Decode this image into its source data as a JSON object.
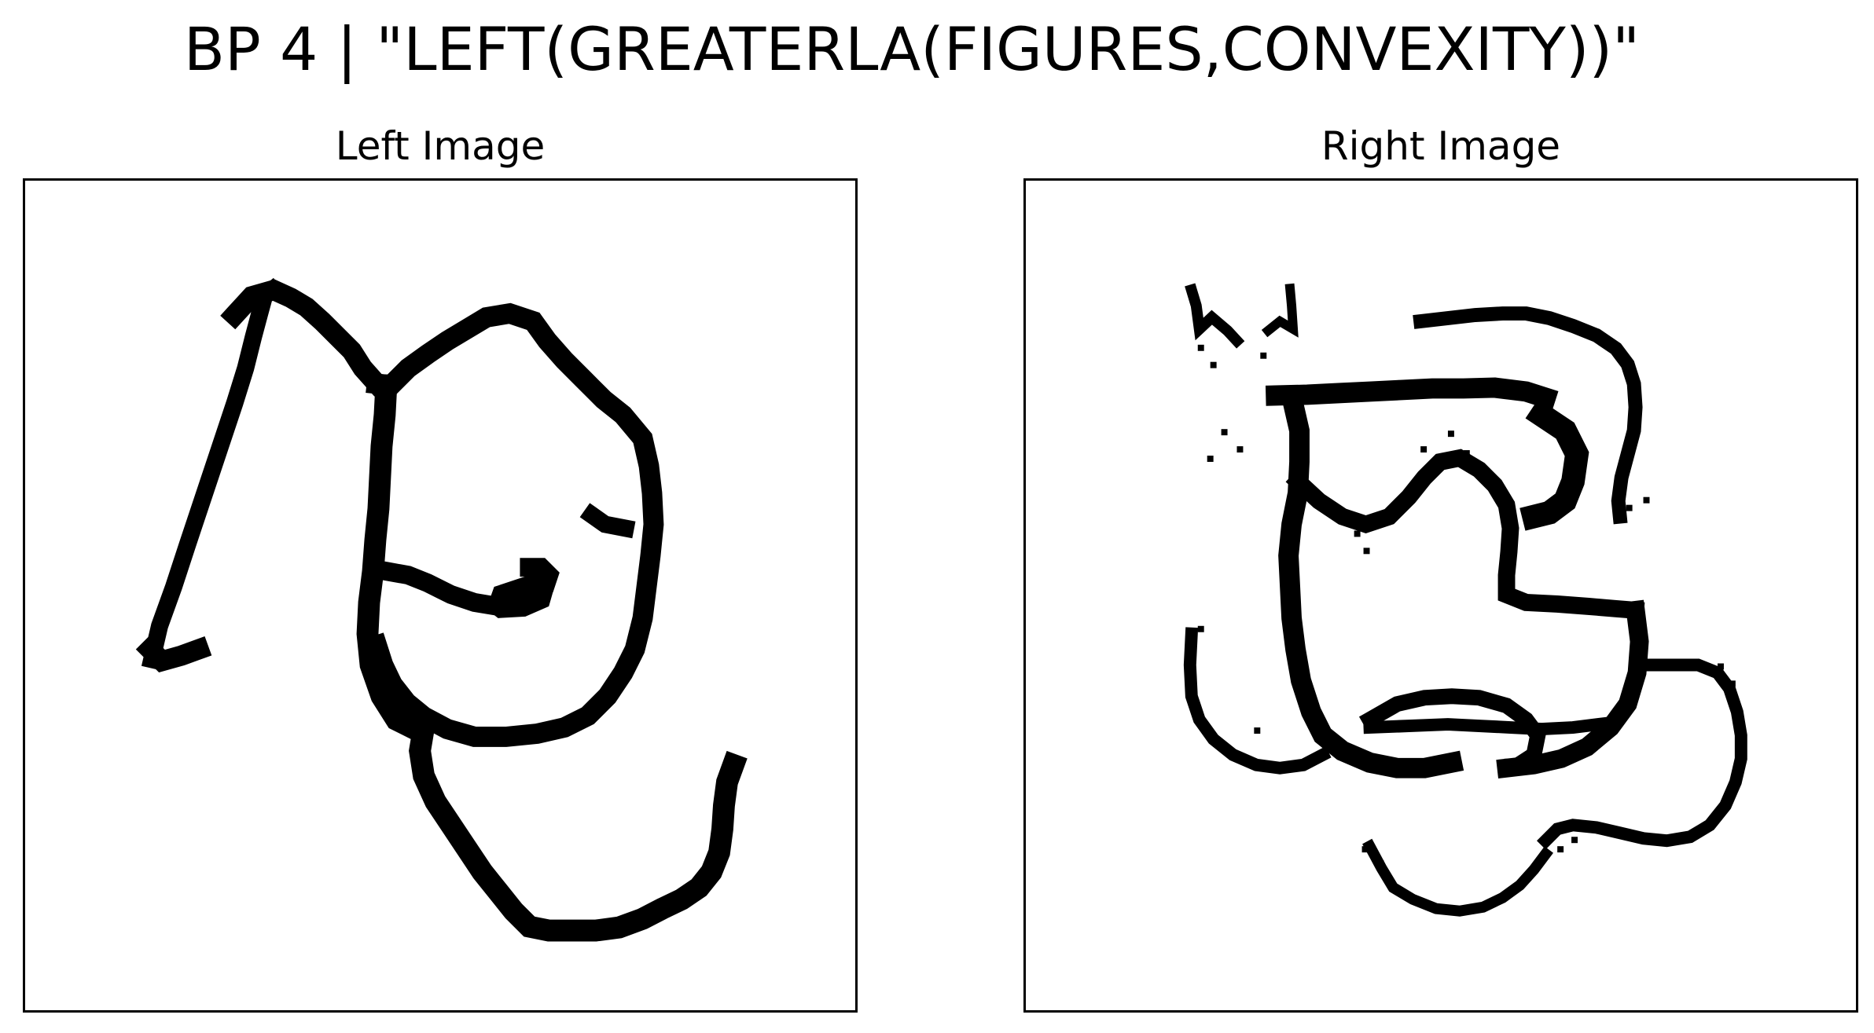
{
  "figure": {
    "title": "BP 4 | \"LEFT(GREATERLA(FIGURES,CONVEXITY))\""
  },
  "panels": [
    {
      "title": "Left Image"
    },
    {
      "title": "Right Image"
    }
  ],
  "colors": {
    "ink": "#000000",
    "background": "#ffffff"
  }
}
